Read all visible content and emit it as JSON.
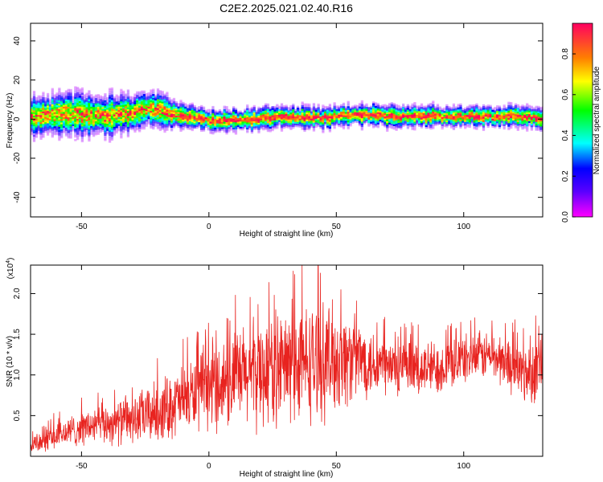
{
  "title": "C2E2.2025.021.02.40.R16",
  "chart_data": [
    {
      "type": "heatmap",
      "title": "C2E2.2025.021.02.40.R16",
      "xlabel": "Height of straight line (km)",
      "ylabel": "Frequency (Hz)",
      "xlim": [
        -70,
        131
      ],
      "ylim": [
        -50,
        49
      ],
      "xticks": [
        -50,
        0,
        50,
        100
      ],
      "yticks": [
        -40,
        -20,
        0,
        20,
        40
      ],
      "colorbar": {
        "label": "Normalized spectral amplitude",
        "range": [
          0.0,
          0.95
        ],
        "ticks": [
          0.0,
          0.2,
          0.4,
          0.6,
          0.8
        ],
        "colormap": "rainbow (violet to red)"
      },
      "ridge_center_hz": {
        "x": [
          -70,
          -60,
          -50,
          -40,
          -30,
          -25,
          -20,
          -15,
          -10,
          -5,
          0,
          10,
          20,
          30,
          40,
          50,
          60,
          70,
          80,
          90,
          100,
          110,
          120,
          131
        ],
        "y": [
          1,
          2,
          2,
          1,
          3,
          5,
          4,
          2,
          1,
          0,
          -1,
          -1,
          0,
          1,
          0,
          1,
          2,
          1,
          1,
          1,
          1,
          1,
          1,
          0
        ]
      },
      "ridge_halfwidth_hz": {
        "x": [
          -70,
          -40,
          -20,
          0,
          131
        ],
        "y": [
          7,
          8,
          6,
          4,
          4
        ]
      }
    },
    {
      "type": "line",
      "xlabel": "Height of straight line (km)",
      "ylabel": "SNR (10 * v/v)",
      "y_scale_label": "(x10",
      "y_scale_exponent": "4",
      "xlim": [
        -70,
        131
      ],
      "ylim": [
        0,
        2.35
      ],
      "xticks": [
        -50,
        0,
        50,
        100
      ],
      "yticks": [
        0.5,
        1.0,
        1.5,
        2.0
      ],
      "series_color": "#e8231f",
      "envelope": {
        "x": [
          -70,
          -60,
          -50,
          -40,
          -30,
          -20,
          -10,
          0,
          10,
          20,
          30,
          40,
          50,
          60,
          70,
          80,
          90,
          100,
          110,
          120,
          125,
          131
        ],
        "center": [
          0.15,
          0.25,
          0.35,
          0.4,
          0.45,
          0.55,
          0.7,
          0.85,
          0.95,
          1.05,
          1.1,
          1.15,
          1.2,
          1.2,
          1.1,
          1.05,
          1.1,
          1.2,
          1.25,
          1.1,
          1.0,
          1.15
        ],
        "amplitude": [
          0.15,
          0.2,
          0.25,
          0.3,
          0.35,
          0.45,
          0.5,
          0.6,
          0.7,
          0.8,
          0.85,
          0.85,
          0.8,
          0.55,
          0.45,
          0.4,
          0.4,
          0.35,
          0.35,
          0.4,
          0.45,
          0.5
        ]
      }
    }
  ]
}
